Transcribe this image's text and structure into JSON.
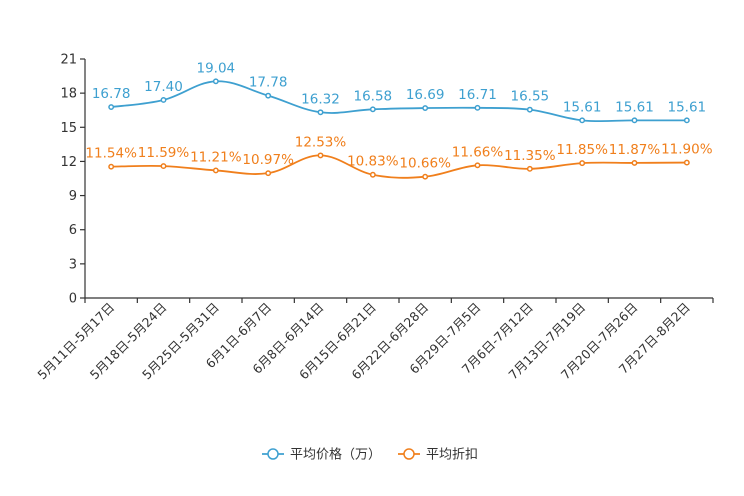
{
  "chart_data": {
    "type": "line",
    "title": "",
    "xlabel": "",
    "ylabel": "",
    "ylim": [
      0,
      21
    ],
    "yticks": [
      0,
      3,
      6,
      9,
      12,
      15,
      18,
      21
    ],
    "categories": [
      "5月11日-5月17日",
      "5月18日-5月24日",
      "5月25日-5月31日",
      "6月1日-6月7日",
      "6月8日-6月14日",
      "6月15日-6月21日",
      "6月22日-6月28日",
      "6月29日-7月5日",
      "7月6日-7月12日",
      "7月13日-7月19日",
      "7月20日-7月26日",
      "7月27日-8月2日"
    ],
    "series": [
      {
        "name": "平均价格（万）",
        "color": "#3ea0d0",
        "values": [
          16.78,
          17.4,
          19.04,
          17.78,
          16.32,
          16.58,
          16.69,
          16.71,
          16.55,
          15.61,
          15.61,
          15.61
        ],
        "labels": [
          "16.78",
          "17.40",
          "19.04",
          "17.78",
          "16.32",
          "16.58",
          "16.69",
          "16.71",
          "16.55",
          "15.61",
          "15.61",
          "15.61"
        ]
      },
      {
        "name": "平均折扣",
        "color": "#f07f1c",
        "values": [
          11.54,
          11.59,
          11.21,
          10.97,
          12.53,
          10.83,
          10.66,
          11.66,
          11.35,
          11.85,
          11.87,
          11.9
        ],
        "labels": [
          "11.54%",
          "11.59%",
          "11.21%",
          "10.97%",
          "12.53%",
          "10.83%",
          "10.66%",
          "11.66%",
          "11.35%",
          "11.85%",
          "11.87%",
          "11.90%"
        ]
      }
    ],
    "legend_position": "bottom-center",
    "grid": false
  }
}
